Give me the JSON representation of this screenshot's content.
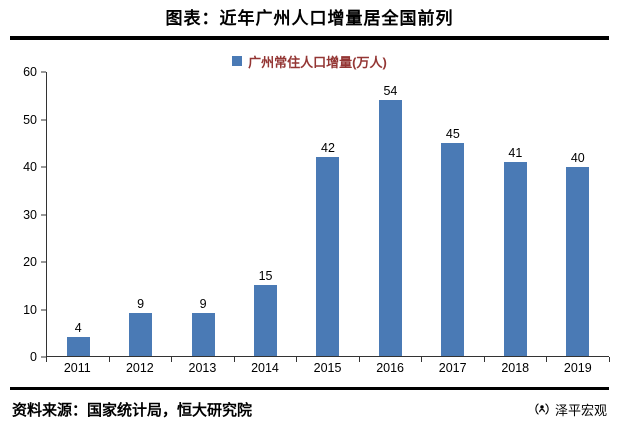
{
  "header": {
    "title": "图表：近年广州人口增量居全国前列"
  },
  "chart_data": {
    "type": "bar",
    "title": "图表：近年广州人口增量居全国前列",
    "legend": "广州常住人口增量(万人)",
    "categories": [
      "2011",
      "2012",
      "2013",
      "2014",
      "2015",
      "2016",
      "2017",
      "2018",
      "2019"
    ],
    "values": [
      4,
      9,
      9,
      15,
      42,
      54,
      45,
      41,
      40
    ],
    "xlabel": "",
    "ylabel": "",
    "ylim": [
      0,
      60
    ],
    "ytick_step": 10,
    "yticks": [
      0,
      10,
      20,
      30,
      40,
      50,
      60
    ],
    "grid": false,
    "legend_position": "top",
    "bar_color": "#4A7AB5",
    "legend_text_color": "#943634"
  },
  "footer": {
    "source": "资料来源：国家统计局，恒大研究院",
    "brand": "泽平宏观"
  }
}
